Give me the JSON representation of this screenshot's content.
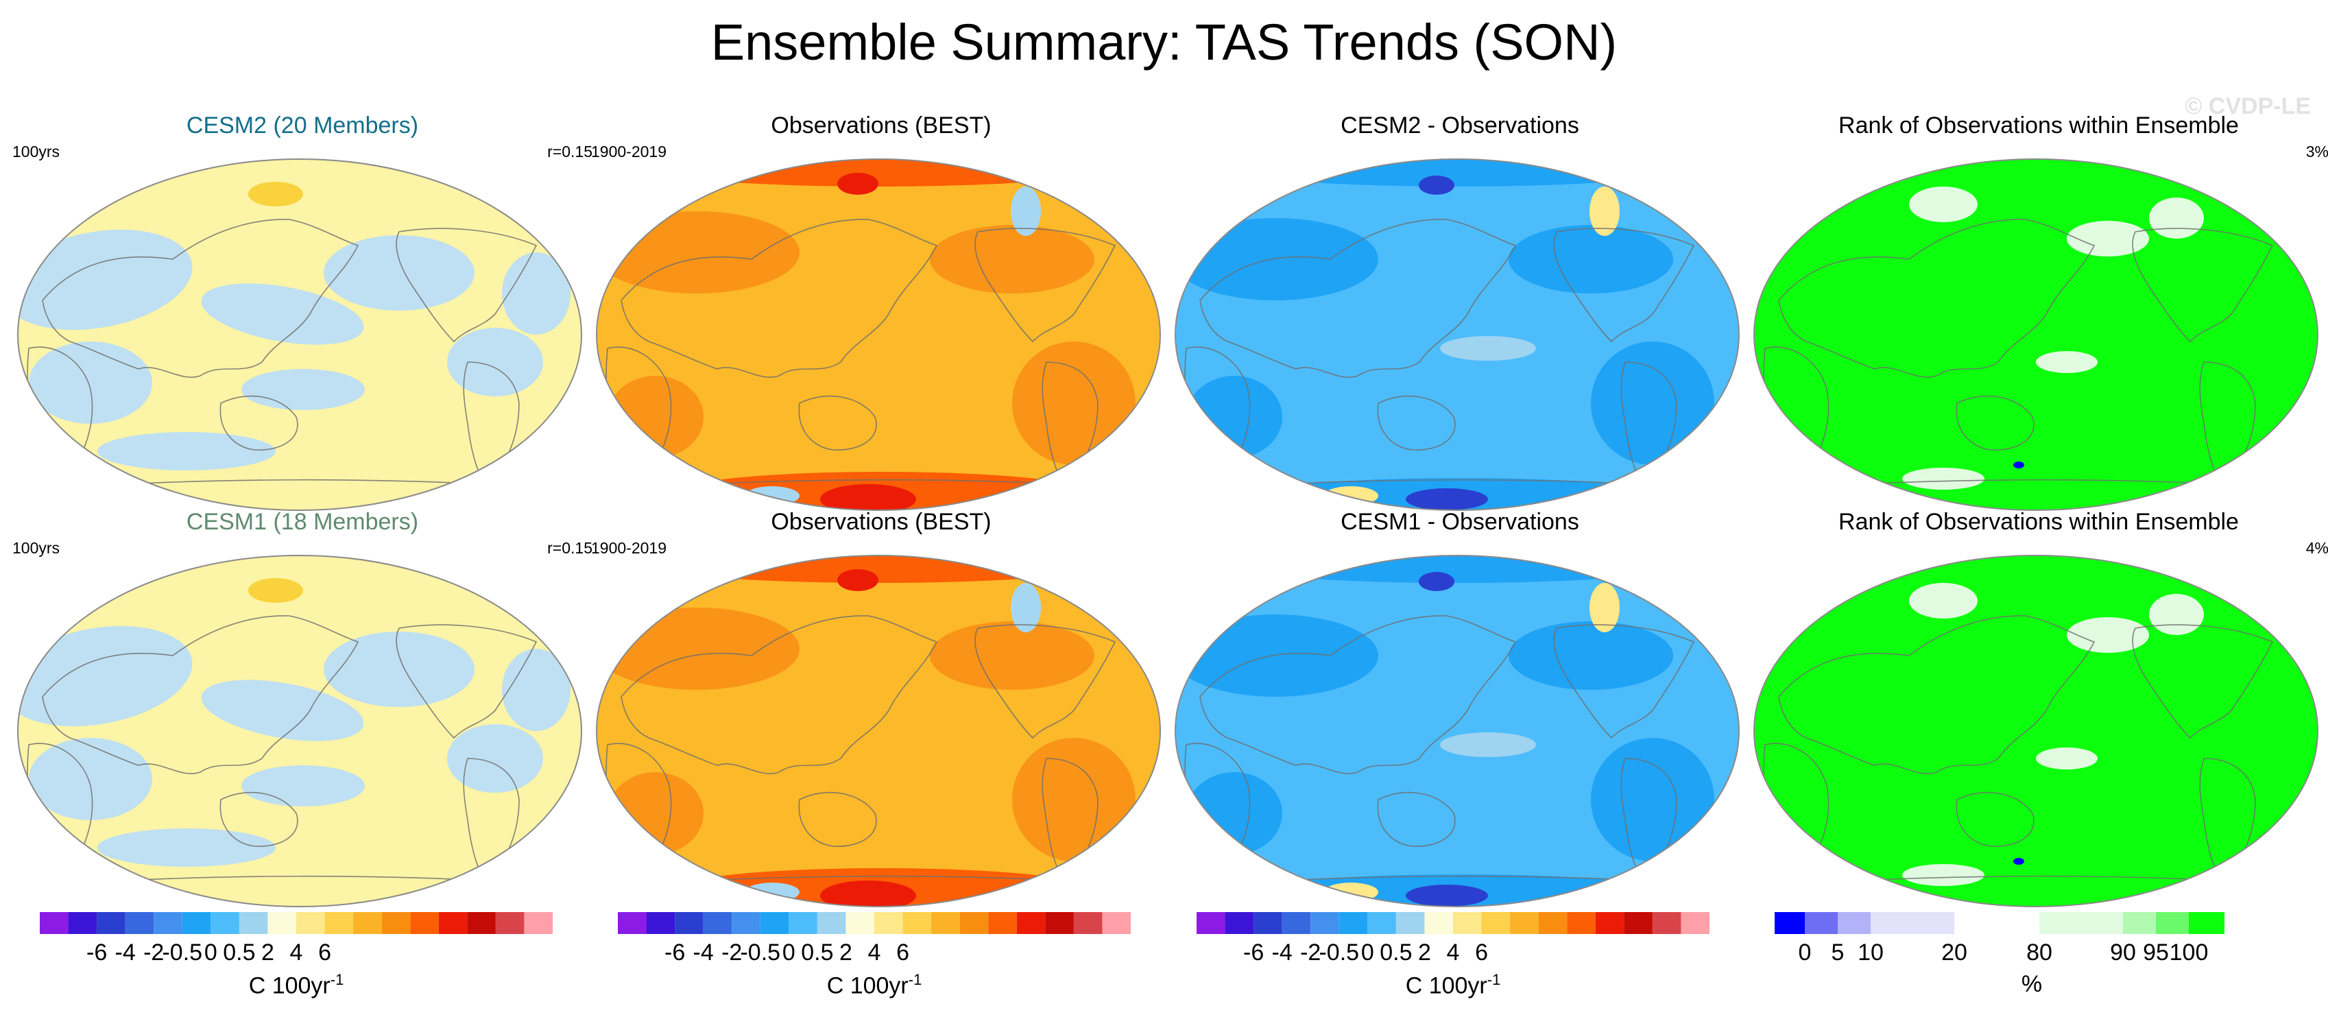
{
  "figure": {
    "title": "Ensemble Summary: TAS Trends (SON)",
    "watermark": "© CVDP-LE"
  },
  "chart_data": [
    {
      "type": "heatmap",
      "row": 1,
      "title": "CESM2 (20 Members)",
      "title_color": "#126e8b",
      "left_label": "100yrs",
      "right_label": "r=0.15",
      "map": "ensemble",
      "projection": "Robinson (Pacific-centered)",
      "predominant_value_range": [
        -0.5,
        0.5
      ]
    },
    {
      "type": "heatmap",
      "row": 1,
      "title": "Observations (BEST)",
      "title_color": "#000000",
      "left_label": "1900-2019",
      "right_label": "",
      "map": "obs",
      "projection": "Robinson (Pacific-centered)",
      "predominant_value_range": [
        0.5,
        2
      ]
    },
    {
      "type": "heatmap",
      "row": 1,
      "title": "CESM2 - Observations",
      "title_color": "#000000",
      "left_label": "",
      "right_label": "",
      "map": "diff",
      "projection": "Robinson (Pacific-centered)",
      "predominant_value_range": [
        -2,
        -0.5
      ]
    },
    {
      "type": "heatmap",
      "row": 1,
      "title": "Rank of Observations within Ensemble",
      "title_color": "#000000",
      "left_label": "",
      "right_label": "3%",
      "map": "rank",
      "projection": "Robinson (Pacific-centered)",
      "predominant_value_range": [
        95,
        100
      ]
    },
    {
      "type": "heatmap",
      "row": 2,
      "title": "CESM1 (18 Members)",
      "title_color": "#5f8a6e",
      "left_label": "100yrs",
      "right_label": "r=0.15",
      "map": "ensemble",
      "projection": "Robinson (Pacific-centered)",
      "predominant_value_range": [
        -0.5,
        0.5
      ]
    },
    {
      "type": "heatmap",
      "row": 2,
      "title": "Observations (BEST)",
      "title_color": "#000000",
      "left_label": "1900-2019",
      "right_label": "",
      "map": "obs",
      "projection": "Robinson (Pacific-centered)",
      "predominant_value_range": [
        0.5,
        2
      ]
    },
    {
      "type": "heatmap",
      "row": 2,
      "title": "CESM1 - Observations",
      "title_color": "#000000",
      "left_label": "",
      "right_label": "",
      "map": "diff",
      "projection": "Robinson (Pacific-centered)",
      "predominant_value_range": [
        -2,
        -0.5
      ]
    },
    {
      "type": "heatmap",
      "row": 2,
      "title": "Rank of Observations within Ensemble",
      "title_color": "#000000",
      "left_label": "",
      "right_label": "4%",
      "map": "rank",
      "projection": "Robinson (Pacific-centered)",
      "predominant_value_range": [
        95,
        100
      ]
    }
  ],
  "colorbars": [
    {
      "kind": "trend",
      "colors": [
        "#8c1be6",
        "#3c14d8",
        "#2a3fcf",
        "#3768e0",
        "#4390ee",
        "#1fa3f5",
        "#4dbcfb",
        "#9fd4f0",
        "#fcfcd9",
        "#fde88a",
        "#fdd14b",
        "#fcb226",
        "#f98d10",
        "#fb5e04",
        "#ec1b06",
        "#c50b05",
        "#d8444a",
        "#ff9fa8"
      ],
      "tick_labels": [
        "-6",
        "-4",
        "-2",
        "-0.5",
        "0",
        "0.5",
        "2",
        "4",
        "6"
      ],
      "unit": "C 100yr",
      "unit_sup": "-1"
    },
    {
      "kind": "trend",
      "colors": [
        "#8c1be6",
        "#3c14d8",
        "#2a3fcf",
        "#3768e0",
        "#4390ee",
        "#1fa3f5",
        "#4dbcfb",
        "#9fd4f0",
        "#fcfcd9",
        "#fde88a",
        "#fdd14b",
        "#fcb226",
        "#f98d10",
        "#fb5e04",
        "#ec1b06",
        "#c50b05",
        "#d8444a",
        "#ff9fa8"
      ],
      "tick_labels": [
        "-6",
        "-4",
        "-2",
        "-0.5",
        "0",
        "0.5",
        "2",
        "4",
        "6"
      ],
      "unit": "C 100yr",
      "unit_sup": "-1"
    },
    {
      "kind": "trend",
      "colors": [
        "#8c1be6",
        "#3c14d8",
        "#2a3fcf",
        "#3768e0",
        "#4390ee",
        "#1fa3f5",
        "#4dbcfb",
        "#9fd4f0",
        "#fcfcd9",
        "#fde88a",
        "#fdd14b",
        "#fcb226",
        "#f98d10",
        "#fb5e04",
        "#ec1b06",
        "#c50b05",
        "#d8444a",
        "#ff9fa8"
      ],
      "tick_labels": [
        "-6",
        "-4",
        "-2",
        "-0.5",
        "0",
        "0.5",
        "2",
        "4",
        "6"
      ],
      "unit": "C 100yr",
      "unit_sup": "-1"
    },
    {
      "kind": "rank",
      "colors": [
        "#0000ff",
        "#6e6ef5",
        "#b2b2f8",
        "#e2e2fb",
        "#ffffff",
        "#e0fbe0",
        "#b1f9b1",
        "#6af96a",
        "#0cff0c"
      ],
      "tick_labels": [
        "0",
        "5",
        "10",
        "20",
        "80",
        "90",
        "95",
        "100"
      ],
      "unit": "%",
      "unit_sup": ""
    }
  ],
  "colors": {
    "ensemble_warm": "#fcf4a6",
    "ensemble_cool": "#bfe0f2",
    "ensemble_hot": "#f9d23e",
    "obs_base": "#fcb929",
    "obs_mid": "#f99418",
    "obs_hot": "#fb5e04",
    "obs_peak": "#ec1b06",
    "obs_cool": "#a6d7f2",
    "diff_base": "#4dbcfb",
    "diff_dark": "#1fa3f5",
    "diff_deep": "#2a3fcf",
    "diff_pale": "#9fd4f0",
    "diff_warm": "#fde88a",
    "rank_base": "#0cff0c",
    "rank_light": "#e0fbe0",
    "rank_low": "#0000ff",
    "land": "#6e6e6e"
  }
}
